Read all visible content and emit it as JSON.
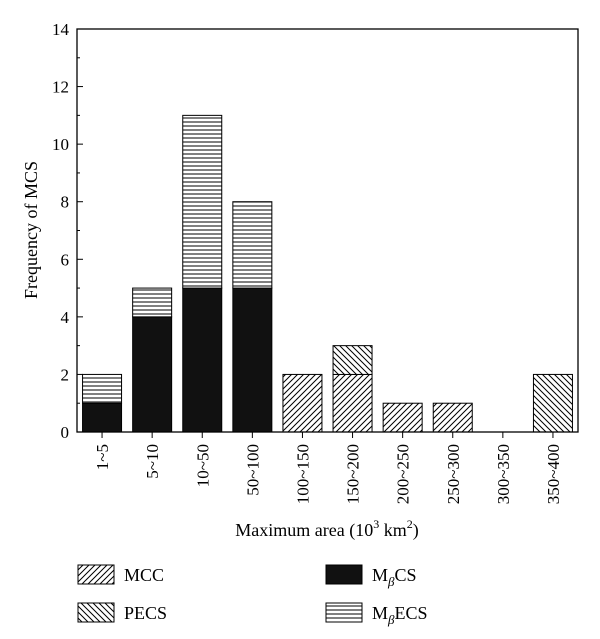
{
  "chart_data": {
    "type": "bar",
    "stacked": true,
    "categories": [
      "1~5",
      "5~10",
      "10~50",
      "50~100",
      "100~150",
      "150~200",
      "200~250",
      "250~300",
      "300~350",
      "350~400"
    ],
    "series": [
      {
        "name": "MCC",
        "pattern": "hatch-forward",
        "values": [
          0,
          0,
          0,
          0,
          2,
          2,
          1,
          1,
          0,
          0
        ]
      },
      {
        "name": "PECS",
        "pattern": "hatch-back",
        "values": [
          0,
          0,
          0,
          0,
          0,
          1,
          0,
          0,
          0,
          2
        ]
      },
      {
        "name": "MβCS",
        "pattern": "solid",
        "values": [
          1,
          4,
          5,
          5,
          0,
          0,
          0,
          0,
          0,
          0
        ]
      },
      {
        "name": "MβECS",
        "pattern": "hatch-horizontal",
        "values": [
          1,
          1,
          6,
          3,
          0,
          0,
          0,
          0,
          0,
          0
        ]
      }
    ],
    "stack_order": [
      "MβCS",
      "MCC",
      "PECS",
      "MβECS"
    ],
    "xlabel": "Maximum area (10³ km²)",
    "ylabel": "Frequency of MCS",
    "ylim": [
      0,
      14
    ],
    "yticks": [
      "0",
      "2",
      "4",
      "6",
      "8",
      "10",
      "12",
      "14"
    ],
    "grid": false,
    "legend_position": "bottom",
    "colors": {
      "fill": "#ffffff",
      "stroke": "#000000",
      "solid": "#111111"
    }
  }
}
